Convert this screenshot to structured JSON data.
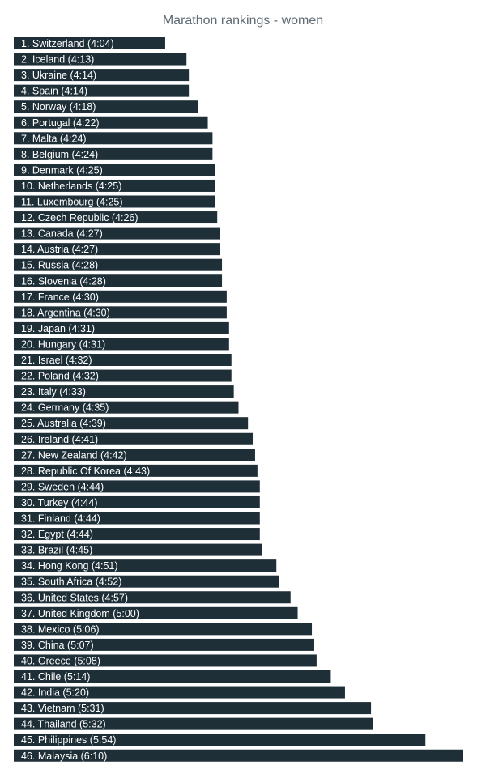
{
  "chart_data": {
    "type": "bar",
    "orientation": "horizontal",
    "title": "Marathon rankings - women",
    "xlabel": "",
    "ylabel": "",
    "grid": false,
    "legend": "none",
    "bar_color": "#1e2f37",
    "label_color": "#ffffff",
    "value_unit": "h:mm",
    "categories": [
      "1. Switzerland (4:04)",
      "2. Iceland (4:13)",
      "3. Ukraine (4:14)",
      "4. Spain (4:14)",
      "5. Norway (4:18)",
      "6. Portugal (4:22)",
      "7. Malta (4:24)",
      "8. Belgium (4:24)",
      "9. Denmark (4:25)",
      "10. Netherlands (4:25)",
      "11. Luxembourg (4:25)",
      "12. Czech Republic (4:26)",
      "13. Canada (4:27)",
      "14. Austria (4:27)",
      "15. Russia (4:28)",
      "16. Slovenia (4:28)",
      "17. France (4:30)",
      "18. Argentina (4:30)",
      "19. Japan (4:31)",
      "20. Hungary (4:31)",
      "21. Israel (4:32)",
      "22. Poland (4:32)",
      "23. Italy (4:33)",
      "24. Germany (4:35)",
      "25. Australia (4:39)",
      "26. Ireland (4:41)",
      "27. New Zealand (4:42)",
      "28. Republic Of Korea (4:43)",
      "29. Sweden (4:44)",
      "30. Turkey (4:44)",
      "31. Finland (4:44)",
      "32. Egypt (4:44)",
      "33. Brazil (4:45)",
      "34. Hong Kong (4:51)",
      "35. South Africa (4:52)",
      "36. United States (4:57)",
      "37. United Kingdom (5:00)",
      "38. Mexico (5:06)",
      "39. China (5:07)",
      "40. Greece (5:08)",
      "41. Chile (5:14)",
      "42. India (5:20)",
      "43. Vietnam (5:31)",
      "44. Thailand (5:32)",
      "45. Philippines (5:54)",
      "46. Malaysia (6:10)"
    ],
    "values": [
      244,
      253,
      254,
      254,
      258,
      262,
      264,
      264,
      265,
      265,
      265,
      266,
      267,
      267,
      268,
      268,
      270,
      270,
      271,
      271,
      272,
      272,
      273,
      275,
      279,
      281,
      282,
      283,
      284,
      284,
      284,
      284,
      285,
      291,
      292,
      297,
      300,
      306,
      307,
      308,
      314,
      320,
      331,
      332,
      354,
      370
    ]
  }
}
